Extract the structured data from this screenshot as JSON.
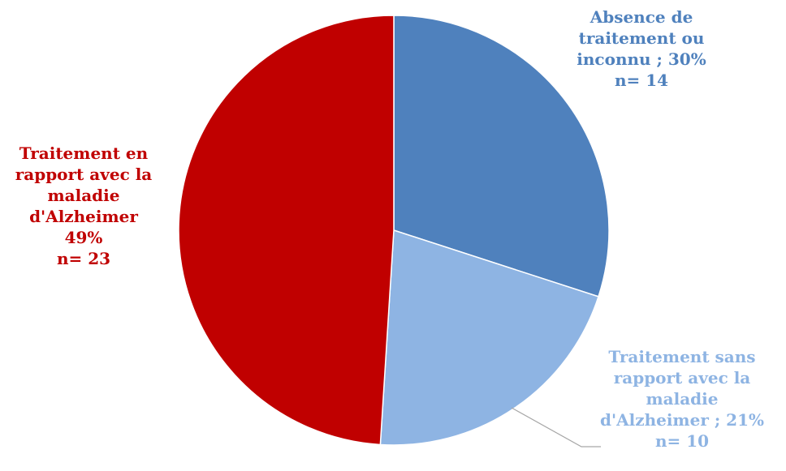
{
  "chart_data": {
    "type": "pie",
    "title": "",
    "slices": [
      {
        "key": "absence",
        "percent": 30,
        "n": 14,
        "color": "#4f81bd",
        "label_color": "#4f81bd",
        "label_lines": [
          "Absence de",
          "traitement ou",
          "inconnu ; 30%",
          "n= 14"
        ]
      },
      {
        "key": "sans",
        "percent": 21,
        "n": 10,
        "color": "#8eb4e3",
        "label_color": "#8eb4e3",
        "label_lines": [
          "Traitement sans",
          "rapport avec la",
          "maladie",
          "d'Alzheimer ; 21%",
          "n= 10"
        ]
      },
      {
        "key": "alz",
        "percent": 49,
        "n": 23,
        "color": "#c00000",
        "label_color": "#c00000",
        "label_lines": [
          "Traitement en",
          "rapport avec la",
          "maladie",
          "d'Alzheimer",
          "49%",
          "n= 23"
        ]
      }
    ],
    "start_angle_deg": 0,
    "direction": "clockwise",
    "legend": "none",
    "leader_line_color": "#a6a6a6"
  }
}
